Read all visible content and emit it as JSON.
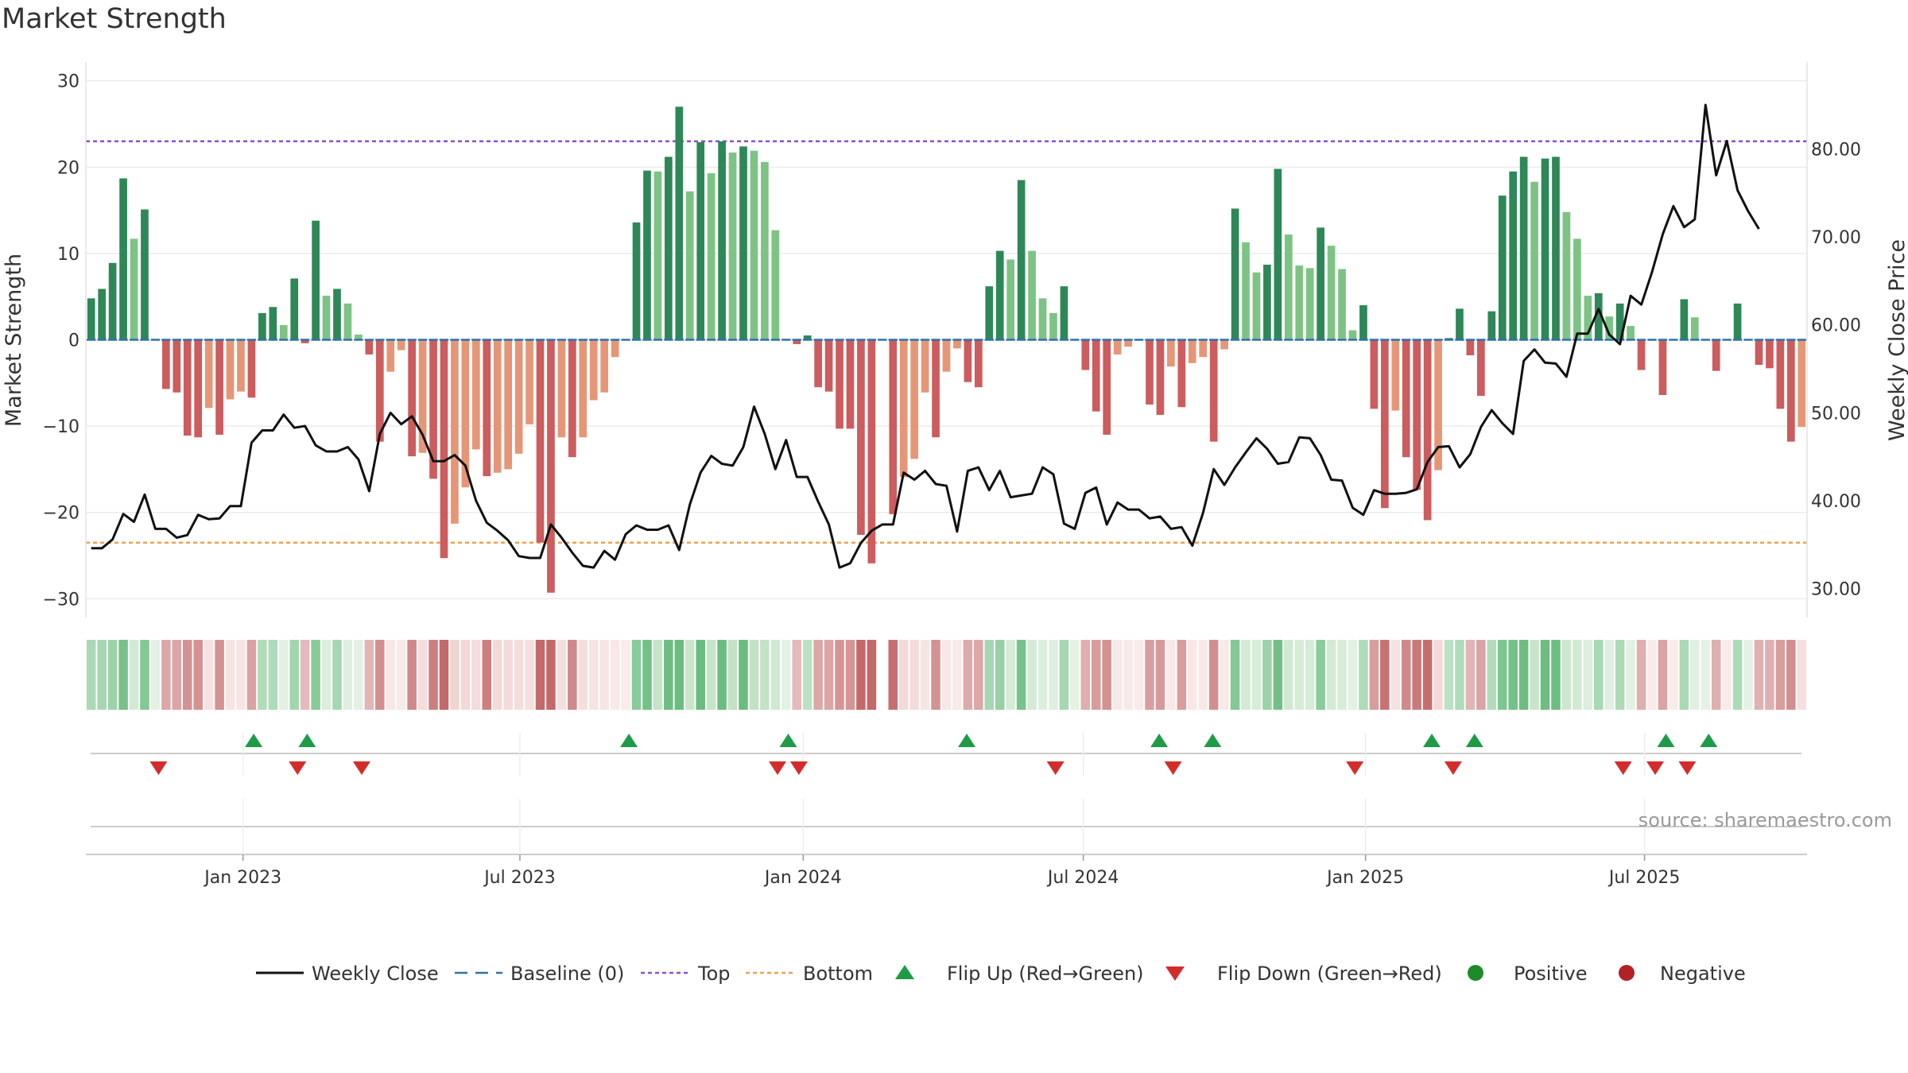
{
  "title": "Market Strength",
  "chart_data": {
    "type": "bar+line",
    "title": "Market Strength",
    "ylabel_left": "Market Strength",
    "ylabel_right": "Weekly Close Price",
    "ylim_left": [
      -32,
      32
    ],
    "ylim_right": [
      26.9,
      89.7
    ],
    "left_ticks": [
      30,
      20,
      10,
      0,
      -10,
      -20,
      -30
    ],
    "left_tick_labels": [
      "30",
      "20",
      "10",
      "0",
      "−10",
      "−20",
      "−30"
    ],
    "right_ticks": [
      30,
      40,
      50,
      60,
      70,
      80
    ],
    "right_tick_labels": [
      "30.00",
      "40.00",
      "50.00",
      "60.00",
      "70.00",
      "80.00"
    ],
    "date_ticks": [
      {
        "label": "Jan 2023",
        "week": 14.2
      },
      {
        "label": "Jul 2023",
        "week": 40.1
      },
      {
        "label": "Jan 2024",
        "week": 66.6
      },
      {
        "label": "Jul 2024",
        "week": 92.8
      },
      {
        "label": "Jan 2025",
        "week": 119.2
      },
      {
        "label": "Jul 2025",
        "week": 145.3
      }
    ],
    "top_threshold": 23,
    "bottom_threshold": -23.5,
    "baseline": 0,
    "strength": [
      4.8,
      5.9,
      8.9,
      18.7,
      11.7,
      15.1,
      0,
      -5.7,
      -6.1,
      -11.1,
      -11.3,
      -7.9,
      -11.0,
      -6.9,
      -6.0,
      -6.7,
      3.1,
      3.8,
      1.7,
      7.1,
      -0.4,
      13.8,
      5.1,
      5.9,
      4.2,
      0.6,
      -1.7,
      -11.8,
      -3.7,
      -1.2,
      -13.5,
      -13.1,
      -16.1,
      -25.3,
      -21.3,
      -17.1,
      -12.7,
      -15.8,
      -15.4,
      -15.0,
      -13.2,
      -9.8,
      -23.5,
      -29.3,
      -11.3,
      -13.6,
      -11.3,
      -7.0,
      -6.1,
      -2.0,
      0,
      13.6,
      19.6,
      19.5,
      21.2,
      27.0,
      17.2,
      22.9,
      19.3,
      23.0,
      21.7,
      22.4,
      21.9,
      20.6,
      12.7,
      0,
      -0.5,
      0.5,
      -5.5,
      -6.0,
      -10.3,
      -10.3,
      -22.6,
      -25.9,
      0,
      -20.2,
      -15.9,
      -13.8,
      -6.1,
      -11.3,
      -3.7,
      -1.0,
      -4.9,
      -5.5,
      6.2,
      10.3,
      9.3,
      18.5,
      10.3,
      4.8,
      3.1,
      6.2,
      0,
      -3.5,
      -8.3,
      -11.0,
      -1.7,
      -0.8,
      0,
      -7.5,
      -8.7,
      -3.1,
      -7.8,
      -2.7,
      -2.0,
      -11.8,
      -1.1,
      15.2,
      11.3,
      7.8,
      8.7,
      19.8,
      12.2,
      8.6,
      8.3,
      13.0,
      10.9,
      8.2,
      1.1,
      4.0,
      -8.0,
      -19.5,
      -8.2,
      -13.6,
      -17.4,
      -20.9,
      -15.1,
      0.2,
      3.6,
      -1.8,
      -6.5,
      3.3,
      16.7,
      19.5,
      21.2,
      18.3,
      21.0,
      21.2,
      14.8,
      11.7,
      5.1,
      5.4,
      2.7,
      4.2,
      1.6,
      -3.5,
      0,
      -6.4,
      0,
      4.7,
      2.6,
      0,
      -3.6,
      0,
      4.2,
      0,
      -2.9,
      -3.3,
      -8.0,
      -11.8,
      -10.1
    ],
    "weekly_close": [
      34.6,
      34.6,
      35.6,
      38.5,
      37.6,
      40.7,
      36.8,
      36.8,
      35.8,
      36.1,
      38.4,
      37.9,
      38.0,
      39.4,
      39.4,
      46.6,
      48.0,
      48.0,
      49.8,
      48.3,
      48.5,
      46.3,
      45.6,
      45.6,
      46.1,
      44.7,
      41.1,
      47.6,
      50.0,
      48.7,
      49.6,
      47.5,
      44.5,
      44.5,
      45.2,
      44.0,
      40.0,
      37.5,
      36.6,
      35.5,
      33.7,
      33.5,
      33.5,
      37.3,
      35.8,
      34.1,
      32.6,
      32.4,
      34.3,
      33.3,
      36.2,
      37.2,
      36.7,
      36.7,
      37.2,
      34.4,
      39.6,
      43.2,
      45.1,
      44.2,
      44.0,
      46.1,
      50.7,
      47.6,
      43.6,
      46.9,
      42.7,
      42.7,
      39.9,
      37.3,
      32.4,
      32.9,
      35.2,
      36.6,
      37.3,
      37.3,
      43.2,
      42.4,
      43.4,
      41.9,
      41.7,
      36.5,
      43.4,
      43.8,
      41.2,
      43.4,
      40.4,
      40.6,
      40.8,
      43.8,
      43.0,
      37.4,
      36.8,
      40.9,
      41.5,
      37.3,
      39.8,
      39.0,
      39.0,
      38.0,
      38.2,
      36.8,
      37.0,
      34.9,
      38.6,
      43.6,
      41.8,
      43.8,
      45.5,
      47.1,
      45.9,
      44.2,
      44.4,
      47.2,
      47.1,
      45.2,
      42.4,
      42.3,
      39.2,
      38.4,
      41.2,
      40.8,
      40.8,
      40.9,
      41.3,
      44.4,
      46.1,
      46.2,
      43.8,
      45.3,
      48.4,
      50.3,
      48.8,
      47.6,
      55.9,
      57.2,
      55.7,
      55.6,
      54.1,
      59.0,
      59.0,
      61.8,
      58.9,
      57.8,
      63.3,
      62.3,
      66.0,
      70.3,
      73.5,
      71.1,
      72.0,
      85.0,
      77.0,
      80.9,
      75.3,
      72.9,
      70.9
    ],
    "strip_fill_colors": [
      "#c2e2c5",
      "#6bbd7f",
      "#f1d3d1",
      "#c4696a"
    ],
    "strip_gaps": [
      74,
      161
    ],
    "flip_up_weeks": [
      15.2,
      20.2,
      50.3,
      65.2,
      81.9,
      99.9,
      104.9,
      125.4,
      129.4,
      147.3,
      151.3
    ],
    "flip_down_weeks": [
      6.3,
      19.3,
      25.3,
      64.2,
      66.2,
      90.2,
      101.2,
      118.2,
      127.4,
      143.3,
      146.3,
      149.3
    ],
    "colors": {
      "pos_strong": "#2e8757",
      "pos_weak": "#7dc384",
      "neg_strong": "#cc5c5d",
      "neg_weak": "#e59677",
      "price_line": "#111111",
      "baseline": "#2f72a8",
      "top_line": "#8c4fd6",
      "bottom_line": "#f0a14e",
      "flip_up": "#1e9b46",
      "flip_down": "#d32d2b",
      "positive": "#1e8b2a",
      "negative": "#b22125",
      "source_text": "#999999"
    },
    "source": "source: sharemaestro.com",
    "legend": [
      {
        "key": "weekly_close",
        "label": "Weekly Close"
      },
      {
        "key": "baseline",
        "label": "Baseline (0)"
      },
      {
        "key": "top",
        "label": "Top"
      },
      {
        "key": "bottom",
        "label": "Bottom"
      },
      {
        "key": "flip_up",
        "label": "Flip Up (Red→Green)"
      },
      {
        "key": "flip_down",
        "label": "Flip Down (Green→Red)"
      },
      {
        "key": "positive",
        "label": "Positive"
      },
      {
        "key": "negative",
        "label": "Negative"
      }
    ]
  }
}
